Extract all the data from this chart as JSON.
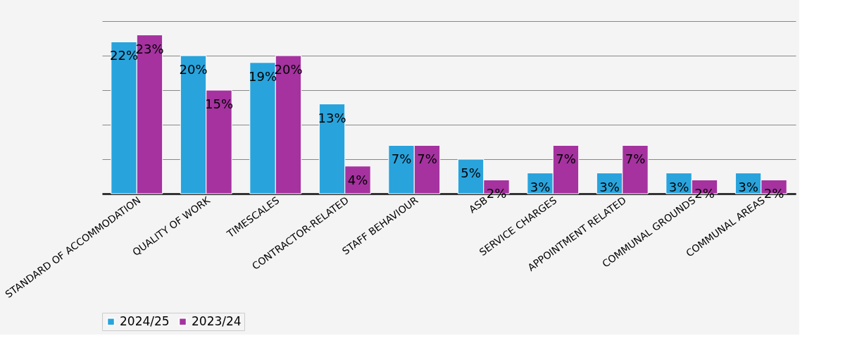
{
  "chart_data": {
    "type": "bar",
    "categories": [
      "STANDARD OF ACCOMMODATION",
      "QUALITY OF WORK",
      "TIMESCALES",
      "CONTRACTOR-RELATED",
      "STAFF BEHAVIOUR",
      "ASB",
      "SERVICE CHARGES",
      "APPOINTMENT RELATED",
      "COMMUNAL GROUNDS",
      "COMMUNAL AREAS"
    ],
    "series": [
      {
        "name": "2024/25",
        "color": "#29a3dc",
        "values": [
          22,
          20,
          19,
          13,
          7,
          5,
          3,
          3,
          3,
          3
        ],
        "value_labels": [
          "22%",
          "20%",
          "19%",
          "13%",
          "7%",
          "5%",
          "3%",
          "3%",
          "3%",
          "3%"
        ]
      },
      {
        "name": "2023/24",
        "color": "#a5329f",
        "values": [
          23,
          15,
          20,
          4,
          7,
          2,
          7,
          7,
          2,
          2
        ],
        "value_labels": [
          "23%",
          "15%",
          "20%",
          "4%",
          "7%",
          "2%",
          "7%",
          "7%",
          "2%",
          "2%"
        ]
      }
    ],
    "ylim": [
      0,
      25
    ],
    "yticks": [
      {
        "value": 0,
        "label": null
      },
      {
        "value": 5,
        "label": null
      },
      {
        "value": 10,
        "label": null
      },
      {
        "value": 15,
        "label": null
      },
      {
        "value": 20,
        "label": null
      },
      {
        "value": 25,
        "label": null
      }
    ],
    "grid": "y",
    "tick_labels": "x",
    "legend": "bottom"
  }
}
